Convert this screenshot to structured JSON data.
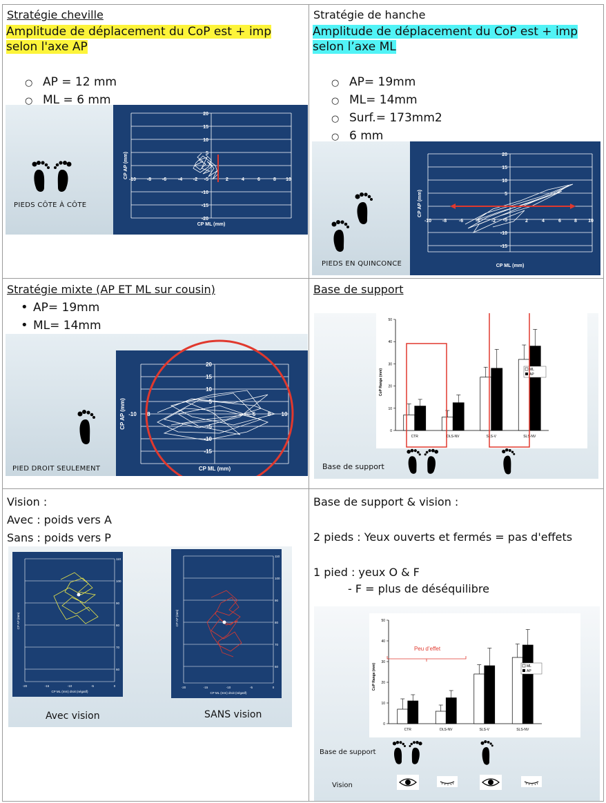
{
  "c1": {
    "title": "Stratégie cheville",
    "line1": "Amplitude de déplacement du CoP est + imp",
    "line2": "selon l'axe AP",
    "items": [
      "AP = 12 mm",
      "ML = 6 mm"
    ],
    "panel_label": "PIEDS CÔTE À CÔTE",
    "chart": {
      "ylabel": "CP AP (mm)",
      "xlabel": "CP ML (mm)",
      "yticks": [
        "20",
        "15",
        "10",
        "5",
        "0",
        "-5",
        "-10",
        "-15",
        "-20"
      ],
      "xticks": [
        "-10",
        "-8",
        "-6",
        "-4",
        "-2",
        "2",
        "4",
        "6",
        "8",
        "10"
      ]
    }
  },
  "c2": {
    "title": "Stratégie de hanche",
    "line1": "Amplitude de déplacement du CoP est + imp",
    "line2": "selon l’axe ML",
    "items": [
      "AP= 19mm",
      "ML= 14mm",
      "Surf.= 173mm2",
      "6 mm"
    ],
    "panel_label": "PIEDS EN QUINCONCE",
    "chart": {
      "ylabel": "CP AP (mm)",
      "xlabel": "CP ML (mm)",
      "yticks": [
        "20",
        "15",
        "10",
        "5",
        "0",
        "-5",
        "-10",
        "-15",
        "-20"
      ],
      "xticks": [
        "-10",
        "-8",
        "-6",
        "-4",
        "-2",
        "2",
        "4",
        "6",
        "8",
        "10"
      ]
    }
  },
  "c3": {
    "title": "Stratégie mixte (AP ET ML sur cousin)",
    "items": [
      "AP= 19mm",
      "ML= 14mm"
    ],
    "panel_label": "PIED DROIT SEULEMENT",
    "chart": {
      "ylabel": "CP AP (mm)",
      "xlabel": "CP ML (mm)",
      "yticks": [
        "20",
        "15",
        "10",
        "5",
        "0",
        "-5",
        "-10",
        "-15",
        "-20"
      ],
      "xticks": [
        "-10",
        "-8",
        "-6",
        "-4",
        "-2",
        "2",
        "4",
        "6",
        "8",
        "10"
      ]
    }
  },
  "c4": {
    "title": "Base de support",
    "panel_label": "Base de support",
    "ylabel": "CoP Range (mm)",
    "legend": [
      "ML",
      "AP"
    ]
  },
  "c5": {
    "title": "Vision :",
    "line1": "Avec : poids vers A",
    "line2": "Sans : poids vers P",
    "left_caption": "Avec vision",
    "right_caption": "SANS vision",
    "left_chart": {
      "ylabel": "CP AP (mm)",
      "xlabel": "CP ML (mm) droit (négatif)",
      "yticks": [
        "110",
        "100",
        "90",
        "80",
        "70",
        "60",
        "50"
      ],
      "xticks": [
        "-20",
        "-15",
        "-10",
        "-5",
        "0"
      ]
    },
    "right_chart": {
      "ylabel": "CP AP (mm)",
      "xlabel": "CP ML (mm) droit (négatif)",
      "yticks": [
        "110",
        "100",
        "90",
        "80",
        "70",
        "60",
        "50"
      ],
      "xticks": [
        "-20",
        "-15",
        "-10",
        "-5",
        "0"
      ]
    }
  },
  "c6": {
    "title": "Base de support & vision :",
    "line1": "2 pieds : Yeux ouverts et fermés = pas d'effets",
    "line2": "1 pied : yeux O & F",
    "line3": "-  F = plus de déséquilibre",
    "annotation": "Peu d’effet",
    "row1": "Base de support",
    "row2": "Vision",
    "ylabel": "CoP Range (mm)",
    "legend": [
      "ML",
      "AP"
    ]
  },
  "chart_data": [
    {
      "type": "bar",
      "categories": [
        "CTR",
        "DLS-NV",
        "SLS-V",
        "SLS-NV"
      ],
      "series": [
        {
          "name": "ML",
          "values": [
            7,
            6,
            24,
            32
          ],
          "errors": [
            5,
            3,
            4.5,
            6.5
          ]
        },
        {
          "name": "AP",
          "values": [
            11,
            12.5,
            28,
            38
          ],
          "errors": [
            3,
            3.5,
            8.5,
            7.5
          ]
        }
      ],
      "ylim": [
        0,
        50
      ],
      "yticks": [
        0,
        10,
        20,
        30,
        40,
        50
      ],
      "ylabel": "CoP Range (mm)",
      "colors": {
        "ML": "#ffffff",
        "AP": "#000000"
      }
    }
  ]
}
